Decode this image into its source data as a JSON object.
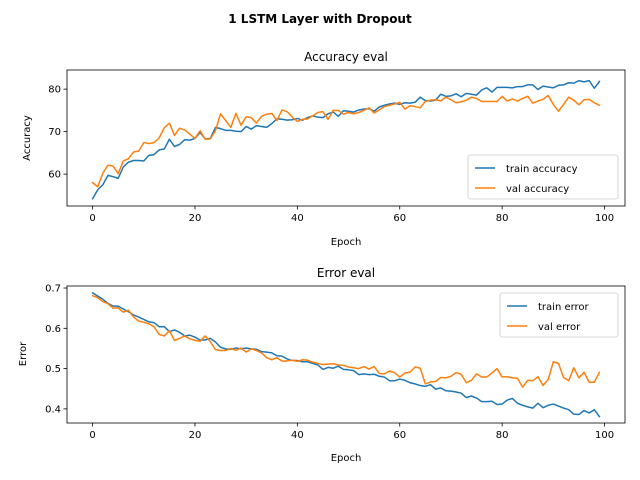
{
  "suptitle": "1 LSTM Layer with Dropout",
  "colors": {
    "train": "#1f77b4",
    "val": "#ff7f0e"
  },
  "chart_data": [
    {
      "type": "line",
      "title": "Accuracy eval",
      "xlabel": "Epoch",
      "ylabel": "Accuracy",
      "xlim": [
        -5,
        104
      ],
      "ylim": [
        52.5,
        84.5
      ],
      "xticks": [
        0,
        20,
        40,
        60,
        80,
        100
      ],
      "yticks": [
        60,
        70,
        80
      ],
      "legend_position": "lower right",
      "x": [
        0,
        1,
        2,
        3,
        4,
        5,
        6,
        7,
        8,
        9,
        10,
        11,
        12,
        13,
        14,
        15,
        16,
        17,
        18,
        19,
        20,
        21,
        22,
        23,
        24,
        25,
        26,
        27,
        28,
        29,
        30,
        31,
        32,
        33,
        34,
        35,
        36,
        37,
        38,
        39,
        40,
        41,
        42,
        43,
        44,
        45,
        46,
        47,
        48,
        49,
        50,
        51,
        52,
        53,
        54,
        55,
        56,
        57,
        58,
        59,
        60,
        61,
        62,
        63,
        64,
        65,
        66,
        67,
        68,
        69,
        70,
        71,
        72,
        73,
        74,
        75,
        76,
        77,
        78,
        79,
        80,
        81,
        82,
        83,
        84,
        85,
        86,
        87,
        88,
        89,
        90,
        91,
        92,
        93,
        94,
        95,
        96,
        97,
        98,
        99
      ],
      "series": [
        {
          "name": "train accuracy",
          "color_key": "train",
          "values": [
            54.2,
            56.3,
            57.5,
            59.7,
            59.4,
            59.0,
            61.7,
            62.8,
            63.2,
            63.2,
            63.1,
            64.4,
            64.6,
            65.7,
            65.9,
            68.2,
            66.5,
            67.0,
            68.1,
            68.0,
            68.4,
            69.8,
            68.3,
            68.4,
            71.0,
            70.7,
            70.3,
            70.3,
            70.1,
            70.0,
            71.2,
            70.6,
            71.4,
            71.2,
            71.0,
            71.9,
            73.0,
            72.9,
            72.7,
            72.8,
            73.1,
            72.7,
            73.3,
            73.7,
            73.4,
            73.3,
            74.2,
            74.6,
            73.6,
            74.9,
            74.8,
            74.6,
            75.1,
            75.3,
            75.4,
            74.8,
            75.8,
            76.2,
            76.5,
            76.7,
            76.4,
            76.8,
            76.7,
            76.9,
            78.1,
            77.3,
            77.2,
            77.4,
            78.8,
            78.3,
            78.4,
            78.9,
            78.2,
            79.0,
            78.8,
            78.6,
            79.8,
            80.3,
            79.3,
            80.4,
            80.4,
            80.4,
            80.3,
            80.6,
            80.6,
            81.0,
            81.0,
            79.9,
            80.7,
            80.5,
            80.3,
            80.9,
            81.0,
            81.5,
            81.4,
            82.0,
            81.7,
            82.0,
            80.2,
            81.8
          ]
        },
        {
          "name": "val accuracy",
          "color_key": "val",
          "values": [
            58.0,
            57.0,
            60.2,
            62.1,
            61.9,
            60.1,
            63.1,
            63.6,
            65.2,
            65.4,
            67.4,
            67.2,
            67.4,
            68.5,
            70.9,
            72.0,
            69.1,
            70.8,
            70.4,
            69.4,
            68.4,
            70.2,
            68.2,
            68.3,
            70.2,
            74.2,
            72.6,
            71.0,
            74.3,
            71.5,
            73.5,
            73.3,
            72.0,
            73.6,
            74.1,
            74.3,
            72.6,
            75.1,
            74.7,
            73.4,
            72.4,
            72.9,
            73.0,
            73.7,
            74.5,
            74.7,
            72.9,
            75.0,
            75.0,
            74.1,
            74.5,
            74.2,
            74.5,
            75.0,
            75.6,
            74.4,
            75.1,
            75.9,
            76.2,
            76.5,
            76.9,
            75.3,
            76.1,
            75.9,
            75.6,
            77.1,
            77.4,
            77.5,
            77.2,
            78.1,
            77.5,
            76.8,
            77.0,
            77.4,
            78.1,
            77.8,
            77.1,
            77.1,
            77.1,
            77.1,
            78.3,
            77.2,
            77.7,
            77.2,
            77.8,
            78.3,
            76.7,
            77.2,
            77.6,
            78.5,
            76.4,
            74.8,
            76.4,
            78.1,
            77.4,
            76.3,
            77.5,
            77.6,
            76.8,
            76.2
          ]
        }
      ]
    },
    {
      "type": "line",
      "title": "Error eval",
      "xlabel": "Epoch",
      "ylabel": "Error",
      "xlim": [
        -5,
        104
      ],
      "ylim": [
        0.365,
        0.705
      ],
      "xticks": [
        0,
        20,
        40,
        60,
        80,
        100
      ],
      "yticks": [
        0.4,
        0.5,
        0.6,
        0.7
      ],
      "legend_position": "upper right",
      "x": [
        0,
        1,
        2,
        3,
        4,
        5,
        6,
        7,
        8,
        9,
        10,
        11,
        12,
        13,
        14,
        15,
        16,
        17,
        18,
        19,
        20,
        21,
        22,
        23,
        24,
        25,
        26,
        27,
        28,
        29,
        30,
        31,
        32,
        33,
        34,
        35,
        36,
        37,
        38,
        39,
        40,
        41,
        42,
        43,
        44,
        45,
        46,
        47,
        48,
        49,
        50,
        51,
        52,
        53,
        54,
        55,
        56,
        57,
        58,
        59,
        60,
        61,
        62,
        63,
        64,
        65,
        66,
        67,
        68,
        69,
        70,
        71,
        72,
        73,
        74,
        75,
        76,
        77,
        78,
        79,
        80,
        81,
        82,
        83,
        84,
        85,
        86,
        87,
        88,
        89,
        90,
        91,
        92,
        93,
        94,
        95,
        96,
        97,
        98,
        99
      ],
      "series": [
        {
          "name": "train error",
          "color_key": "train",
          "values": [
            0.688,
            0.68,
            0.672,
            0.662,
            0.655,
            0.655,
            0.648,
            0.641,
            0.633,
            0.628,
            0.622,
            0.616,
            0.614,
            0.604,
            0.604,
            0.592,
            0.596,
            0.59,
            0.581,
            0.583,
            0.578,
            0.571,
            0.571,
            0.575,
            0.566,
            0.553,
            0.549,
            0.548,
            0.551,
            0.549,
            0.551,
            0.549,
            0.548,
            0.542,
            0.541,
            0.539,
            0.532,
            0.531,
            0.524,
            0.52,
            0.52,
            0.517,
            0.517,
            0.513,
            0.509,
            0.498,
            0.503,
            0.501,
            0.506,
            0.498,
            0.497,
            0.495,
            0.485,
            0.487,
            0.485,
            0.486,
            0.481,
            0.479,
            0.47,
            0.47,
            0.474,
            0.471,
            0.465,
            0.462,
            0.458,
            0.456,
            0.46,
            0.449,
            0.452,
            0.445,
            0.444,
            0.442,
            0.439,
            0.428,
            0.432,
            0.427,
            0.418,
            0.418,
            0.419,
            0.411,
            0.412,
            0.422,
            0.426,
            0.414,
            0.409,
            0.405,
            0.402,
            0.414,
            0.403,
            0.409,
            0.412,
            0.407,
            0.402,
            0.398,
            0.387,
            0.386,
            0.396,
            0.39,
            0.398,
            0.381
          ]
        },
        {
          "name": "val error",
          "color_key": "val",
          "values": [
            0.681,
            0.676,
            0.666,
            0.661,
            0.65,
            0.651,
            0.64,
            0.645,
            0.628,
            0.618,
            0.615,
            0.611,
            0.604,
            0.585,
            0.581,
            0.594,
            0.57,
            0.575,
            0.581,
            0.574,
            0.57,
            0.568,
            0.581,
            0.567,
            0.547,
            0.545,
            0.545,
            0.55,
            0.545,
            0.551,
            0.541,
            0.549,
            0.545,
            0.539,
            0.527,
            0.522,
            0.527,
            0.519,
            0.519,
            0.521,
            0.518,
            0.522,
            0.521,
            0.516,
            0.513,
            0.51,
            0.511,
            0.512,
            0.509,
            0.508,
            0.504,
            0.502,
            0.5,
            0.505,
            0.499,
            0.505,
            0.488,
            0.487,
            0.494,
            0.49,
            0.479,
            0.489,
            0.491,
            0.504,
            0.501,
            0.462,
            0.467,
            0.468,
            0.478,
            0.477,
            0.481,
            0.49,
            0.486,
            0.465,
            0.471,
            0.487,
            0.479,
            0.479,
            0.489,
            0.5,
            0.479,
            0.48,
            0.477,
            0.476,
            0.454,
            0.471,
            0.47,
            0.48,
            0.458,
            0.473,
            0.517,
            0.513,
            0.478,
            0.47,
            0.502,
            0.477,
            0.491,
            0.466,
            0.466,
            0.491
          ]
        }
      ]
    }
  ]
}
